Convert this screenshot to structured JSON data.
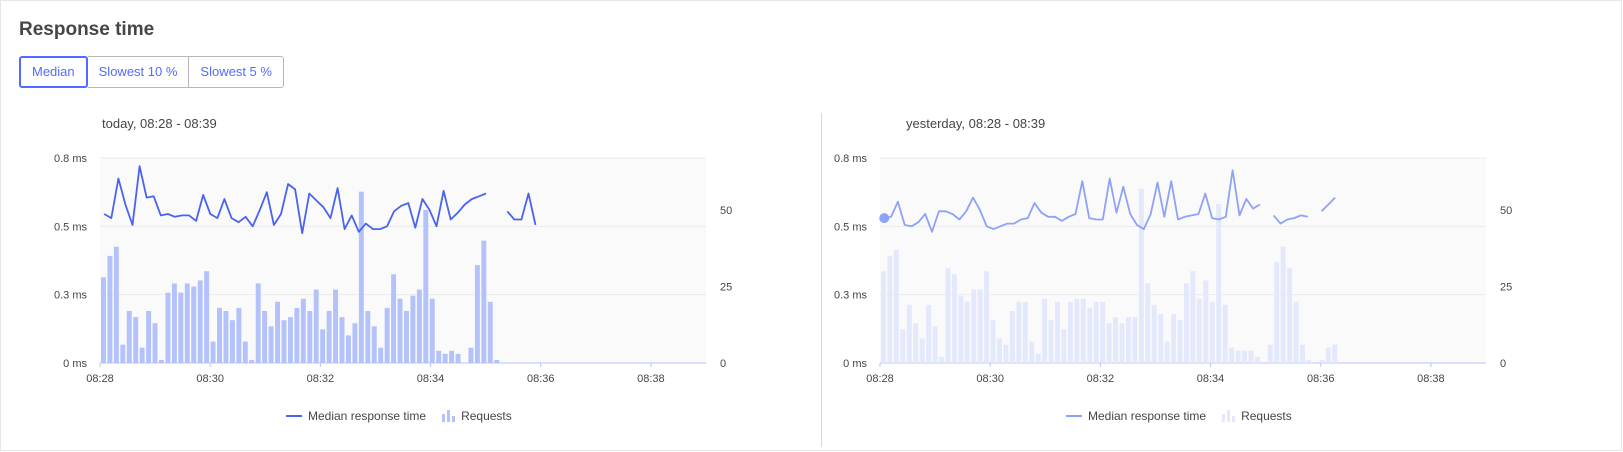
{
  "section_title": "Response time",
  "tabs": [
    {
      "label": "Median",
      "active": true
    },
    {
      "label": "Slowest 10 %",
      "active": false
    },
    {
      "label": "Slowest 5 %",
      "active": false
    }
  ],
  "legend": {
    "line_label": "Median response time",
    "bars_label": "Requests"
  },
  "colors": {
    "accent": "#526cff",
    "today_line": "#4a63ef",
    "today_bars": "#b4c2fb",
    "yesterday_line": "#8ea2f7",
    "yesterday_bars": "#e3e8fd"
  },
  "chart_data": [
    {
      "type": "bar+line",
      "title": "today, 08:28 - 08:39",
      "y_left_ticks": [
        "0.8 ms",
        "0.5 ms",
        "0.3 ms",
        "0 ms"
      ],
      "y_left_tick_values": [
        0.75,
        0.5,
        0.25,
        0
      ],
      "y_right_ticks": [
        "50",
        "25",
        "0"
      ],
      "y_right_tick_values": [
        50,
        25,
        0
      ],
      "x_ticks": [
        "08:28",
        "08:30",
        "08:32",
        "08:34",
        "08:36",
        "08:38"
      ],
      "x_tick_minutes": [
        0,
        2,
        4,
        6,
        8,
        10
      ],
      "x_range_minutes": [
        0,
        11
      ],
      "ylim_left": [
        0,
        0.75
      ],
      "ylim_right": [
        0,
        67
      ],
      "series": [
        {
          "name": "Median response time",
          "kind": "line",
          "values": [
            0.545,
            0.53,
            0.675,
            0.58,
            0.505,
            0.72,
            0.605,
            0.61,
            0.54,
            0.545,
            0.535,
            0.54,
            0.54,
            0.52,
            0.615,
            0.545,
            0.53,
            0.6,
            0.53,
            0.515,
            0.535,
            0.5,
            0.56,
            0.625,
            0.505,
            0.545,
            0.655,
            0.635,
            0.475,
            0.62,
            0.595,
            0.57,
            0.53,
            0.64,
            0.49,
            0.54,
            0.48,
            0.51,
            0.49,
            0.49,
            0.5,
            0.555,
            0.575,
            0.585,
            0.495,
            0.6,
            0.56,
            0.5,
            0.63,
            0.525,
            0.55,
            0.58,
            0.6,
            0.61,
            0.62,
            null,
            null,
            0.555,
            0.525,
            0.525,
            0.62,
            0.505
          ]
        },
        {
          "name": "Requests",
          "kind": "bar",
          "values": [
            28,
            35,
            38,
            6,
            17,
            15,
            5,
            17,
            13,
            1,
            23,
            26,
            23,
            26,
            25,
            27,
            30,
            7,
            18,
            17,
            14,
            18,
            7,
            1,
            26,
            17,
            12,
            20,
            14,
            15,
            18,
            21,
            17,
            24,
            11,
            17,
            24,
            15,
            9,
            13,
            56,
            17,
            12,
            5,
            18,
            29,
            21,
            17,
            22,
            24,
            50,
            21,
            4,
            3,
            4,
            3,
            0,
            5,
            32,
            40,
            20,
            1,
            0,
            0,
            0,
            0,
            0,
            0
          ]
        }
      ]
    },
    {
      "type": "bar+line",
      "title": "yesterday, 08:28 - 08:39",
      "y_left_ticks": [
        "0.8 ms",
        "0.5 ms",
        "0.3 ms",
        "0 ms"
      ],
      "y_left_tick_values": [
        0.75,
        0.5,
        0.25,
        0
      ],
      "y_right_ticks": [
        "50",
        "25",
        "0"
      ],
      "y_right_tick_values": [
        50,
        25,
        0
      ],
      "x_ticks": [
        "08:28",
        "08:30",
        "08:32",
        "08:34",
        "08:36",
        "08:38"
      ],
      "x_tick_minutes": [
        0,
        2,
        4,
        6,
        8,
        10
      ],
      "x_range_minutes": [
        0,
        11
      ],
      "ylim_left": [
        0,
        0.75
      ],
      "ylim_right": [
        0,
        67
      ],
      "series": [
        {
          "name": "Median response time",
          "kind": "line",
          "values": [
            0.53,
            0.535,
            0.59,
            0.505,
            0.5,
            0.515,
            0.545,
            0.48,
            0.555,
            0.555,
            0.545,
            0.525,
            0.555,
            0.605,
            0.56,
            0.5,
            0.49,
            0.5,
            0.51,
            0.51,
            0.525,
            0.53,
            0.585,
            0.55,
            0.535,
            0.535,
            0.52,
            0.535,
            0.545,
            0.665,
            0.53,
            0.525,
            0.525,
            0.675,
            0.55,
            0.645,
            0.545,
            0.505,
            0.49,
            0.545,
            0.66,
            0.535,
            0.665,
            0.525,
            0.535,
            0.54,
            0.545,
            0.62,
            0.53,
            0.525,
            0.535,
            0.705,
            0.54,
            0.6,
            0.565,
            0.58,
            null,
            0.54,
            0.51,
            0.525,
            0.53,
            0.54,
            0.535,
            null,
            0.555,
            0.58,
            0.605
          ]
        },
        {
          "name": "Requests",
          "kind": "bar",
          "values": [
            30,
            35,
            37,
            11,
            19,
            13,
            8,
            19,
            12,
            2,
            31,
            29,
            22,
            20,
            24,
            24,
            30,
            14,
            8,
            6,
            17,
            20,
            20,
            7,
            3,
            21,
            14,
            20,
            11,
            20,
            21,
            21,
            18,
            20,
            20,
            13,
            15,
            13,
            15,
            15,
            57,
            26,
            19,
            16,
            7,
            16,
            14,
            26,
            30,
            21,
            27,
            20,
            52,
            19,
            5,
            4,
            4,
            4,
            2,
            0,
            6,
            33,
            38,
            31,
            20,
            6,
            1,
            0,
            1,
            5,
            6
          ]
        }
      ]
    }
  ]
}
